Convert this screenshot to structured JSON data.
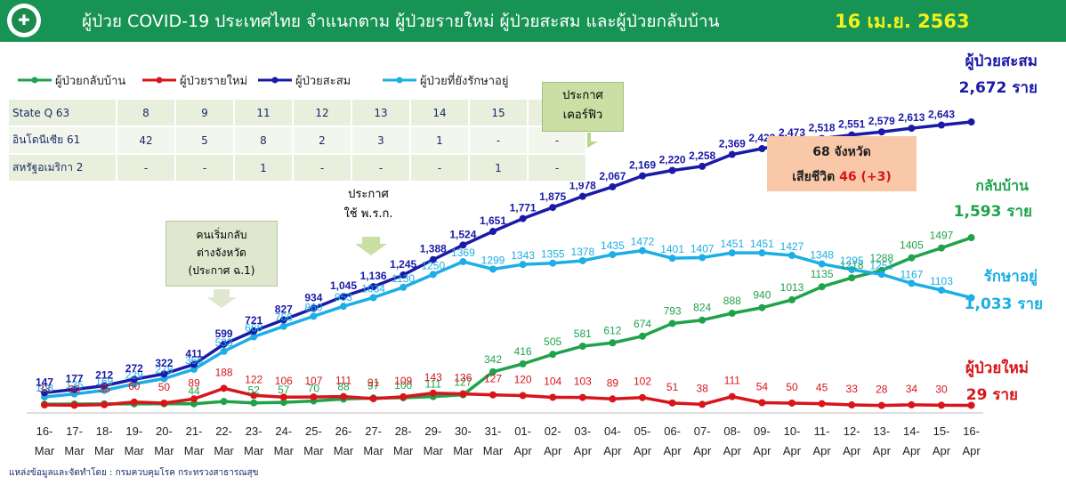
{
  "header": {
    "title": "ผู้ป่วย COVID-19 ประเทศไทย จำแนกตาม ผู้ป่วยรายใหม่ ผู้ป่วยสะสม  และผู้ป่วยกลับบ้าน",
    "date": "16 เม.ย. 2563",
    "logo_icon": "ministry-of-public-health-logo"
  },
  "legend": [
    {
      "label": "ผู้ป่วยกลับบ้าน",
      "color": "#1fa34a"
    },
    {
      "label": "ผู้ป่วยรายใหม่",
      "color": "#d8151a"
    },
    {
      "label": "ผู้ป่วยสะสม",
      "color": "#1a1aa8"
    },
    {
      "label": "ผู้ป่วยที่ยังรักษาอยู่",
      "color": "#1caee4"
    }
  ],
  "state_table": {
    "rows": [
      {
        "label": "State Q  63",
        "cells": [
          "8",
          "9",
          "11",
          "12",
          "13",
          "14",
          "15",
          "16"
        ]
      },
      {
        "label": "อินโดนีเซีย  61",
        "cells": [
          "42",
          "5",
          "8",
          "2",
          "3",
          "1",
          "-",
          "-"
        ]
      },
      {
        "label": "สหรัฐอเมริกา 2",
        "cells": [
          "-",
          "-",
          "1",
          "-",
          "-",
          "-",
          "1",
          "-"
        ]
      }
    ]
  },
  "callouts": {
    "curfew_line1": "ประกาศ",
    "curfew_line2": "เคอร์ฟิว",
    "emergency_line1": "ประกาศ",
    "emergency_line2": "ใช้ พ.ร.ก.",
    "return_line1": "คนเริ่มกลับ",
    "return_line2": "ต่างจังหวัด",
    "return_line3": "(ประกาศ ฉ.1)"
  },
  "summary": {
    "provinces": "68 จังหวัด",
    "deaths_label": "เสียชีวิต",
    "deaths_value": "46 (+3)"
  },
  "end_labels": {
    "cumulative_title": "ผู้ป่วยสะสม",
    "cumulative_value": "2,672 ราย",
    "recovered_title": "กลับบ้าน",
    "recovered_value": "1,593 ราย",
    "treating_title": "รักษาอยู่",
    "treating_value": "1,033 ราย",
    "new_title": "ผู้ป่วยใหม่",
    "new_value": "29 ราย"
  },
  "source": "แหล่งข้อมูลและจัดทำโดย : กรมควบคุมโรค กระทรวงสาธารณสุข",
  "chart_data": {
    "type": "line",
    "x": [
      "16-Mar",
      "17-Mar",
      "18-Mar",
      "19-Mar",
      "20-Mar",
      "21-Mar",
      "22-Mar",
      "23-Mar",
      "24-Mar",
      "25-Mar",
      "26-Mar",
      "27-Mar",
      "28-Mar",
      "29-Mar",
      "30-Mar",
      "31-Mar",
      "01-Apr",
      "02-Apr",
      "03-Apr",
      "04-Apr",
      "05-Apr",
      "06-Apr",
      "07-Apr",
      "08-Apr",
      "09-Apr",
      "10-Apr",
      "11-Apr",
      "12-Apr",
      "13-Apr",
      "14-Apr",
      "15-Apr",
      "16-Apr"
    ],
    "series": [
      {
        "name": "ผู้ป่วยสะสม",
        "color": "#1a1aa8",
        "labels_shown": [
          "147",
          "177",
          "212",
          "272",
          "322",
          "411",
          "599",
          "721",
          "827",
          "934",
          "1,045",
          "1,136",
          "1,245",
          "1,388",
          "1,524",
          "1,651",
          "1,771",
          "1,875",
          "1,978",
          "2,067",
          "2,169",
          "2,220",
          "2,258",
          "2,369",
          "2,423",
          "2,473",
          "2,518",
          "2,551",
          "2,579",
          "2,613",
          "2,643",
          ""
        ],
        "values": [
          147,
          177,
          212,
          272,
          322,
          411,
          599,
          721,
          827,
          934,
          1045,
          1136,
          1245,
          1388,
          1524,
          1651,
          1771,
          1875,
          1978,
          2067,
          2169,
          2220,
          2258,
          2369,
          2423,
          2473,
          2518,
          2551,
          2579,
          2613,
          2643,
          2672
        ]
      },
      {
        "name": "ผู้ป่วยที่ยังรักษาอยู่",
        "color": "#1caee4",
        "labels_shown": [
          "108",
          "135",
          "169",
          "229",
          "278",
          "366",
          "533",
          "668",
          "766",
          "860",
          "953",
          "1034",
          "1130",
          "1250",
          "1369",
          "1299",
          "1343",
          "1355",
          "1378",
          "1435",
          "1472",
          "1401",
          "1407",
          "1451",
          "1451",
          "1427",
          "1348",
          "1295",
          "1251",
          "1167",
          "1103",
          ""
        ],
        "values": [
          108,
          135,
          169,
          229,
          278,
          366,
          533,
          668,
          766,
          860,
          953,
          1034,
          1130,
          1250,
          1369,
          1299,
          1343,
          1355,
          1378,
          1435,
          1472,
          1401,
          1407,
          1451,
          1451,
          1427,
          1348,
          1295,
          1251,
          1167,
          1103,
          1033
        ]
      },
      {
        "name": "ผู้ป่วยกลับบ้าน",
        "color": "#1fa34a",
        "labels_shown": [
          "",
          "",
          "",
          "",
          "",
          "44",
          "",
          "52",
          "57",
          "70",
          "88",
          "97",
          "100",
          "111",
          "127",
          "342",
          "416",
          "505",
          "581",
          "612",
          "674",
          "793",
          "824",
          "888",
          "940",
          "1013",
          "1135",
          "1218",
          "1288",
          "1405",
          "1497",
          ""
        ],
        "values": [
          39,
          42,
          43,
          43,
          44,
          44,
          65,
          52,
          57,
          70,
          88,
          97,
          100,
          111,
          127,
          342,
          416,
          505,
          581,
          612,
          674,
          793,
          824,
          888,
          940,
          1013,
          1135,
          1218,
          1288,
          1405,
          1497,
          1593
        ]
      },
      {
        "name": "ผู้ป่วยรายใหม่",
        "color": "#d8151a",
        "labels_shown": [
          "33",
          "30",
          "35",
          "60",
          "50",
          "89",
          "188",
          "122",
          "106",
          "107",
          "111",
          "91",
          "109",
          "143",
          "136",
          "127",
          "120",
          "104",
          "103",
          "89",
          "102",
          "51",
          "38",
          "111",
          "54",
          "50",
          "45",
          "33",
          "28",
          "34",
          "30",
          ""
        ],
        "values": [
          33,
          30,
          35,
          60,
          50,
          89,
          188,
          122,
          106,
          107,
          111,
          91,
          109,
          143,
          136,
          127,
          120,
          104,
          103,
          89,
          102,
          51,
          38,
          111,
          54,
          50,
          45,
          33,
          28,
          34,
          30,
          29
        ]
      }
    ],
    "ylim": [
      0,
      3000
    ],
    "grid": false,
    "legend_position": "top-left"
  }
}
